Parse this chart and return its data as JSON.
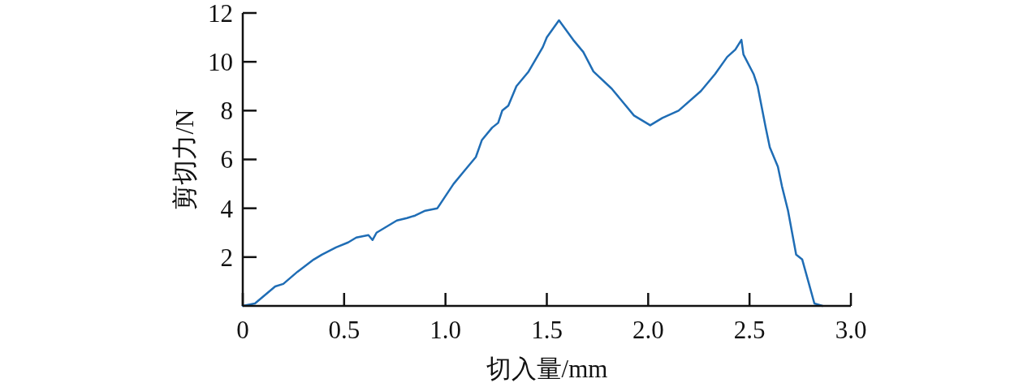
{
  "chart_data": {
    "type": "line",
    "xlabel": "切入量/mm",
    "ylabel": "剪切力/N",
    "xlim": [
      0,
      3.0
    ],
    "ylim": [
      0,
      12
    ],
    "xticks": [
      0,
      {
        "value": 0.5,
        "label": "0.5"
      },
      {
        "value": 1,
        "label": "1.0"
      },
      {
        "value": 1.5,
        "label": "1.5"
      },
      {
        "value": 2,
        "label": "2.0"
      },
      {
        "value": 2.5,
        "label": "2.5"
      },
      {
        "value": 3,
        "label": "3.0"
      }
    ],
    "yticks": [
      2,
      4,
      6,
      8,
      10,
      12
    ],
    "grid": false,
    "marker": "none",
    "line_style": "solid",
    "series": [
      {
        "color": "#1f6db5",
        "x": [
          0,
          0.06,
          0.16,
          0.2,
          0.27,
          0.35,
          0.39,
          0.46,
          0.52,
          0.56,
          0.62,
          0.64,
          0.66,
          0.7,
          0.76,
          0.81,
          0.85,
          0.9,
          0.96,
          1.0,
          1.04,
          1.09,
          1.15,
          1.18,
          1.23,
          1.26,
          1.28,
          1.31,
          1.35,
          1.41,
          1.48,
          1.5,
          1.56,
          1.63,
          1.68,
          1.73,
          1.82,
          1.93,
          2.01,
          2.07,
          2.15,
          2.26,
          2.33,
          2.39,
          2.43,
          2.46,
          2.47,
          2.52,
          2.54,
          2.58,
          2.6,
          2.64,
          2.66,
          2.69,
          2.73,
          2.76,
          2.79,
          2.82,
          2.86
        ],
        "values": [
          0,
          0.1,
          0.8,
          0.9,
          1.4,
          1.9,
          2.1,
          2.4,
          2.6,
          2.8,
          2.9,
          2.7,
          3.0,
          3.2,
          3.5,
          3.6,
          3.7,
          3.9,
          4.0,
          4.5,
          5.0,
          5.5,
          6.1,
          6.8,
          7.3,
          7.5,
          8.0,
          8.2,
          9.0,
          9.6,
          10.6,
          11.0,
          11.7,
          10.9,
          10.4,
          9.6,
          8.9,
          7.8,
          7.4,
          7.7,
          8.0,
          8.8,
          9.5,
          10.2,
          10.5,
          10.9,
          10.3,
          9.5,
          9.0,
          7.3,
          6.5,
          5.7,
          4.9,
          3.9,
          2.1,
          1.9,
          1.0,
          0.1,
          0.0
        ]
      }
    ]
  }
}
